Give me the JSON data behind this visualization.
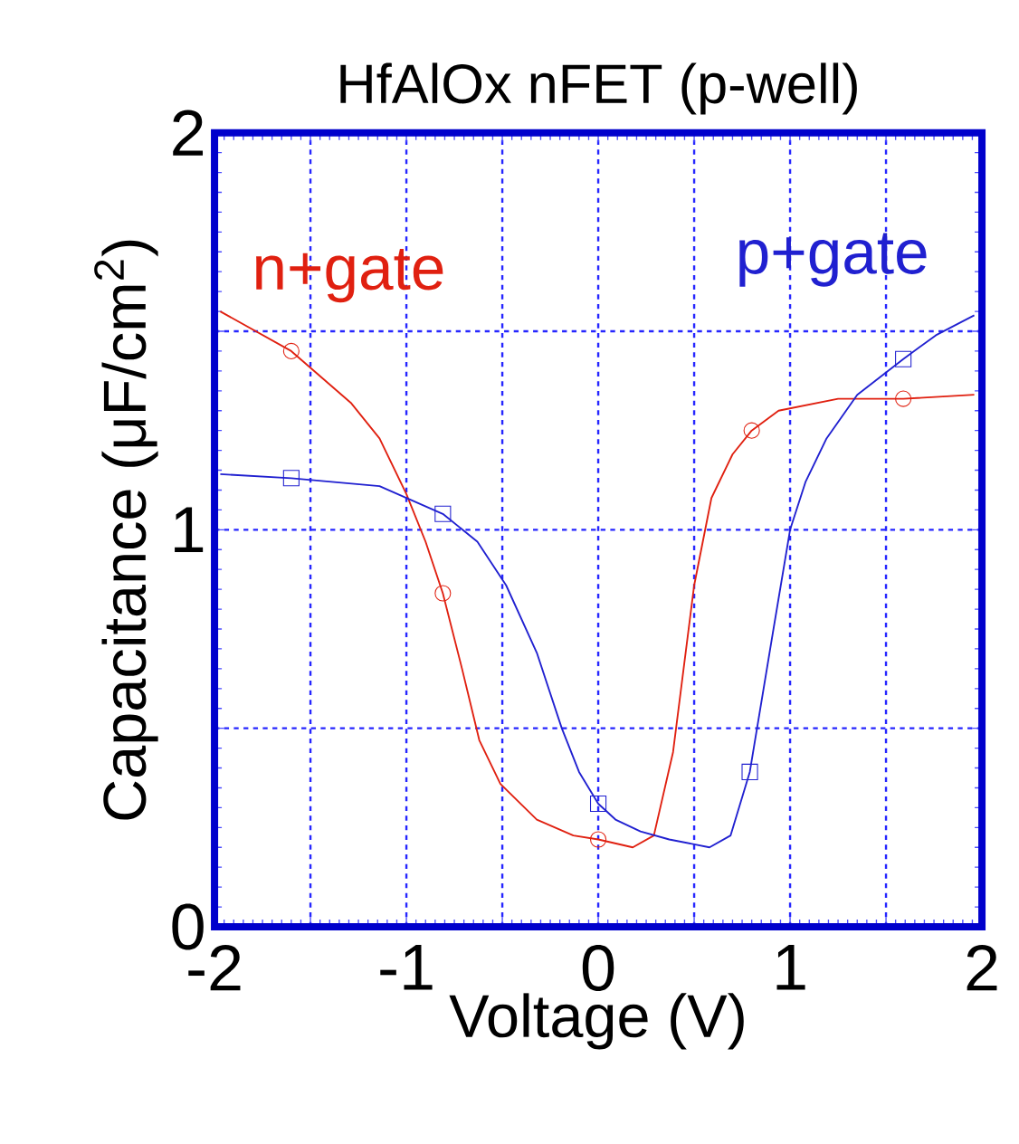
{
  "chart_data": {
    "type": "line",
    "title": "HfAlOx nFET (p-well)",
    "xlabel": "Voltage (V)",
    "ylabel": "Capacitance (μF/cm$^{2}$)",
    "xlim": [
      -2,
      2
    ],
    "ylim": [
      0,
      2
    ],
    "xticks": [
      -2,
      {
        "value": -1.5,
        "label": null
      },
      -1,
      {
        "value": -0.5,
        "label": null
      },
      0,
      {
        "value": 0.5,
        "label": null
      },
      1,
      {
        "value": 1.5,
        "label": null
      },
      2
    ],
    "yticks": [
      0,
      {
        "value": 0.5,
        "label": null
      },
      1,
      {
        "value": 1.5,
        "label": null
      },
      2
    ],
    "grid": true,
    "line_style": "solid",
    "series": [
      {
        "name": "n+gate",
        "color": "#e02010",
        "marker": "none",
        "x": [
          -1.97,
          -1.6,
          -1.29,
          -1.14,
          -1.0,
          -0.9,
          -0.81,
          -0.71,
          -0.62,
          -0.51,
          -0.32,
          -0.13,
          0.0,
          0.18,
          0.29,
          0.39,
          0.5,
          0.59,
          0.7,
          0.8,
          0.94,
          1.25,
          1.59,
          1.96
        ],
        "values": [
          1.55,
          1.45,
          1.32,
          1.23,
          1.09,
          0.97,
          0.84,
          0.65,
          0.47,
          0.36,
          0.27,
          0.23,
          0.22,
          0.2,
          0.23,
          0.44,
          0.86,
          1.08,
          1.19,
          1.25,
          1.3,
          1.33,
          1.33,
          1.34
        ]
      },
      {
        "name": "p+gate",
        "color": "#2020d0",
        "marker": "none",
        "x": [
          -1.97,
          -1.6,
          -1.14,
          -0.81,
          -0.63,
          -0.48,
          -0.32,
          -0.19,
          -0.1,
          0.0,
          0.09,
          0.22,
          0.37,
          0.58,
          0.69,
          0.79,
          0.91,
          1.0,
          1.08,
          1.19,
          1.35,
          1.59,
          1.76,
          1.96
        ],
        "values": [
          1.14,
          1.13,
          1.11,
          1.04,
          0.97,
          0.86,
          0.69,
          0.5,
          0.39,
          0.31,
          0.27,
          0.24,
          0.22,
          0.2,
          0.23,
          0.39,
          0.74,
          1.0,
          1.12,
          1.23,
          1.34,
          1.43,
          1.49,
          1.54
        ]
      },
      {
        "type": "scatter",
        "color": "#e02010",
        "marker": "circle",
        "x": [
          -1.6,
          -0.81,
          0.0,
          0.8,
          1.59
        ],
        "values": [
          1.45,
          0.84,
          0.22,
          1.25,
          1.33
        ]
      },
      {
        "type": "scatter",
        "color": "#2020d0",
        "marker": "square",
        "x": [
          -1.6,
          -0.81,
          0.0,
          0.79,
          1.59
        ],
        "values": [
          1.13,
          1.04,
          0.31,
          0.39,
          1.43
        ]
      }
    ]
  }
}
